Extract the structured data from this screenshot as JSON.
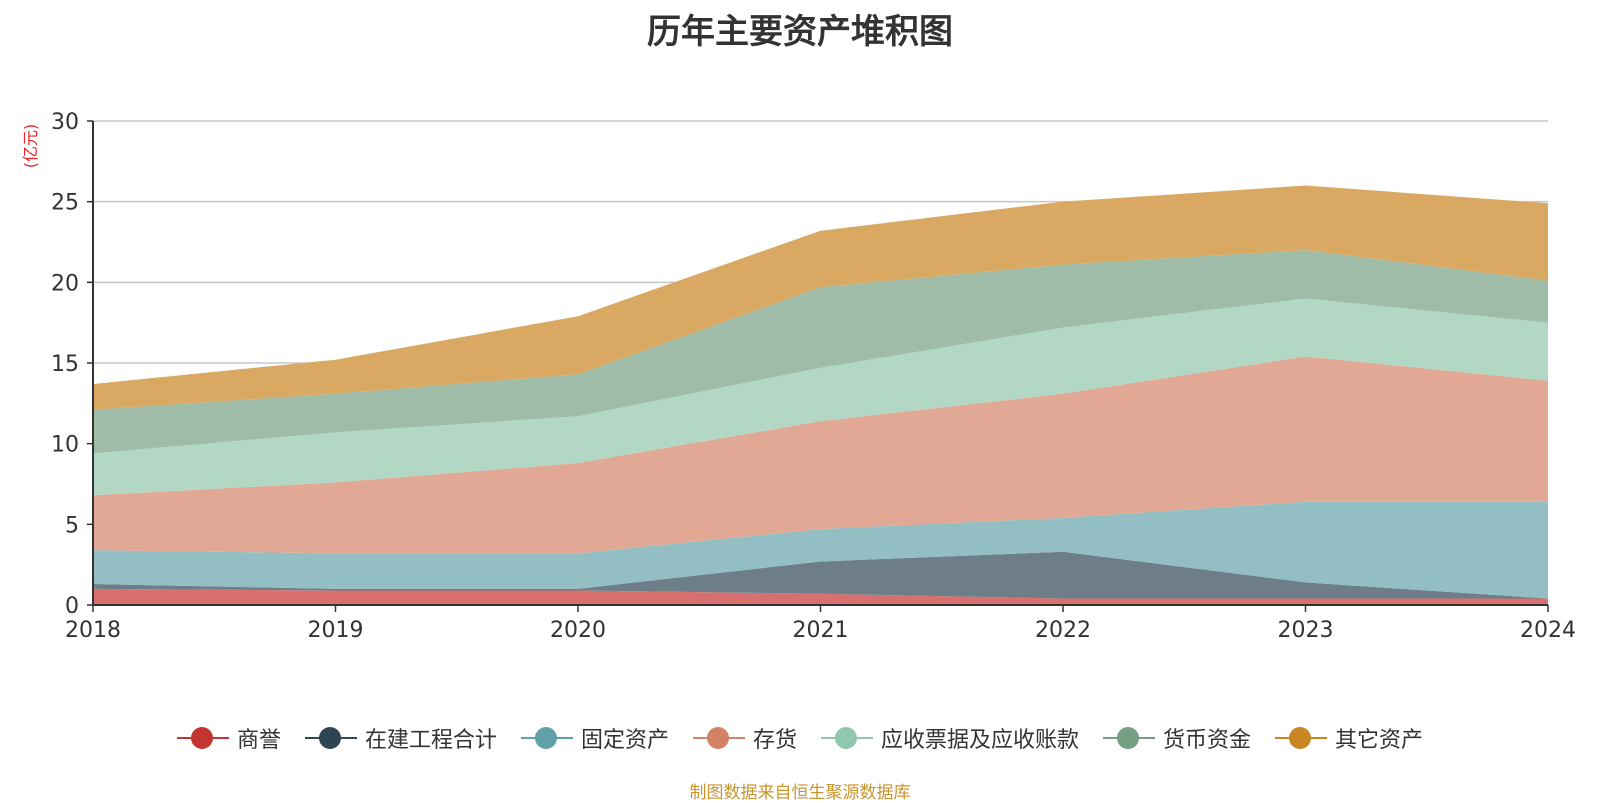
{
  "chart_data": {
    "type": "area",
    "stacked": true,
    "title": "历年主要资产堆积图",
    "ylabel": "(亿元)",
    "xlabel": "",
    "x": [
      "2018",
      "2019",
      "2020",
      "2021",
      "2022",
      "2023",
      "2024"
    ],
    "ylim": [
      0,
      30
    ],
    "yticks": [
      0,
      5,
      10,
      15,
      20,
      25,
      30
    ],
    "grid": true,
    "legend_position": "bottom",
    "series": [
      {
        "name": "商誉",
        "color": "#c23531",
        "fill": "#d97070",
        "values": [
          1.0,
          0.9,
          0.9,
          0.7,
          0.4,
          0.4,
          0.4
        ]
      },
      {
        "name": "在建工程合计",
        "color": "#2f4554",
        "fill": "#6e7e88",
        "values": [
          0.3,
          0.1,
          0.1,
          2.0,
          2.9,
          1.0,
          0.0
        ]
      },
      {
        "name": "固定资产",
        "color": "#61a0a8",
        "fill": "#93bec4",
        "values": [
          2.1,
          2.2,
          2.2,
          2.0,
          2.1,
          5.0,
          6.0
        ]
      },
      {
        "name": "存货",
        "color": "#d48265",
        "fill": "#e1a995",
        "values": [
          3.4,
          4.4,
          5.6,
          6.7,
          7.7,
          9.0,
          7.5
        ]
      },
      {
        "name": "应收票据及应收账款",
        "color": "#91c7ae",
        "fill": "#b2d8c5",
        "values": [
          2.6,
          3.1,
          2.9,
          3.3,
          4.1,
          3.6,
          3.6
        ]
      },
      {
        "name": "货币资金",
        "color": "#749f83",
        "fill": "#9fbca8",
        "values": [
          2.7,
          2.4,
          2.6,
          5.0,
          3.9,
          3.0,
          2.6
        ]
      },
      {
        "name": "其它资产",
        "color": "#ca8622",
        "fill": "#d9a963",
        "values": [
          1.6,
          2.1,
          3.6,
          3.5,
          3.9,
          4.0,
          4.8
        ]
      }
    ]
  },
  "source_note": "制图数据来自恒生聚源数据库"
}
